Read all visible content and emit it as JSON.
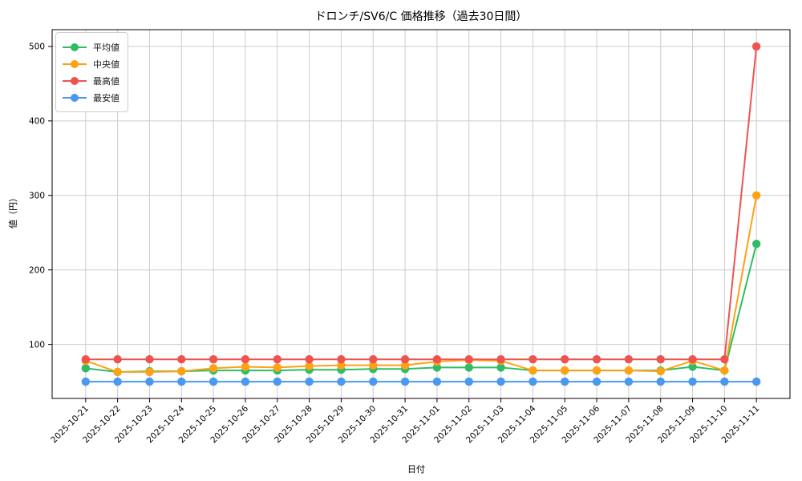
{
  "title": "ドロンチ/SV6/C 価格推移（過去30日間）",
  "chart_data": {
    "type": "line",
    "title": "ドロンチ/SV6/C 価格推移（過去30日間）",
    "xlabel": "日付",
    "ylabel": "値（円）",
    "categories": [
      "2025-10-21",
      "2025-10-22",
      "2025-10-23",
      "2025-10-24",
      "2025-10-25",
      "2025-10-26",
      "2025-10-27",
      "2025-10-28",
      "2025-10-29",
      "2025-10-30",
      "2025-10-31",
      "2025-11-01",
      "2025-11-02",
      "2025-11-03",
      "2025-11-04",
      "2025-11-05",
      "2025-11-06",
      "2025-11-07",
      "2025-11-08",
      "2025-11-09",
      "2025-11-10",
      "2025-11-11"
    ],
    "series": [
      {
        "name": "平均値",
        "color": "#2ebd64",
        "values": [
          68,
          63,
          64,
          64,
          65,
          65,
          65,
          66,
          66,
          67,
          67,
          69,
          69,
          69,
          65,
          65,
          65,
          65,
          65,
          70,
          65,
          235
        ]
      },
      {
        "name": "中央値",
        "color": "#ffa115",
        "values": [
          78,
          63,
          63,
          64,
          68,
          70,
          69,
          71,
          72,
          72,
          72,
          77,
          79,
          78,
          65,
          65,
          65,
          65,
          64,
          78,
          65,
          300
        ]
      },
      {
        "name": "最高値",
        "color": "#ef5350",
        "values": [
          80,
          80,
          80,
          80,
          80,
          80,
          80,
          80,
          80,
          80,
          80,
          80,
          80,
          80,
          80,
          80,
          80,
          80,
          80,
          80,
          80,
          500
        ]
      },
      {
        "name": "最安値",
        "color": "#4a98f0",
        "values": [
          50,
          50,
          50,
          50,
          50,
          50,
          50,
          50,
          50,
          50,
          50,
          50,
          50,
          50,
          50,
          50,
          50,
          50,
          50,
          50,
          50,
          50
        ]
      }
    ],
    "ylim": [
      27.5,
      522.5
    ],
    "yticks": [
      100,
      200,
      300,
      400,
      500
    ],
    "grid": true,
    "grid_color": "#cccccc",
    "spine_color": "#000000",
    "legend_position": "upper-left"
  }
}
